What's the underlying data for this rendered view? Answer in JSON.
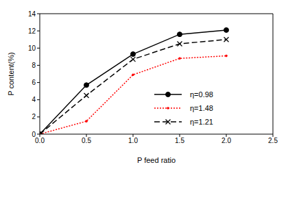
{
  "chart_data": {
    "type": "line",
    "x_label": "P feed ratio",
    "y_label": "P content(%)",
    "x": [
      0,
      0.5,
      1,
      1.5,
      2
    ],
    "series": [
      {
        "name": "η=0.98",
        "color": "#000000",
        "values": [
          0,
          5.7,
          9.3,
          11.6,
          12.1
        ],
        "marker": "circle",
        "line_style": "solid"
      },
      {
        "name": "η=1.48",
        "color": "#ff0000",
        "values": [
          0,
          1.5,
          6.9,
          8.8,
          9.1
        ],
        "marker": "dot",
        "line_style": "dotted"
      },
      {
        "name": "η=1.21",
        "color": "#000000",
        "values": [
          0,
          4.5,
          8.7,
          10.5,
          11.0
        ],
        "marker": "cross",
        "line_style": "dashed"
      }
    ],
    "xlim": [
      0,
      2.5
    ],
    "xticks": [
      {
        "value": 0,
        "label": "0.0"
      },
      0.5,
      {
        "value": 1,
        "label": "1.0"
      },
      1.5,
      {
        "value": 2,
        "label": "2.0"
      },
      2.5
    ],
    "ylim": [
      0,
      14
    ],
    "yticks": [
      0,
      2,
      4,
      6,
      8,
      10,
      12,
      14
    ],
    "legend": "right"
  }
}
